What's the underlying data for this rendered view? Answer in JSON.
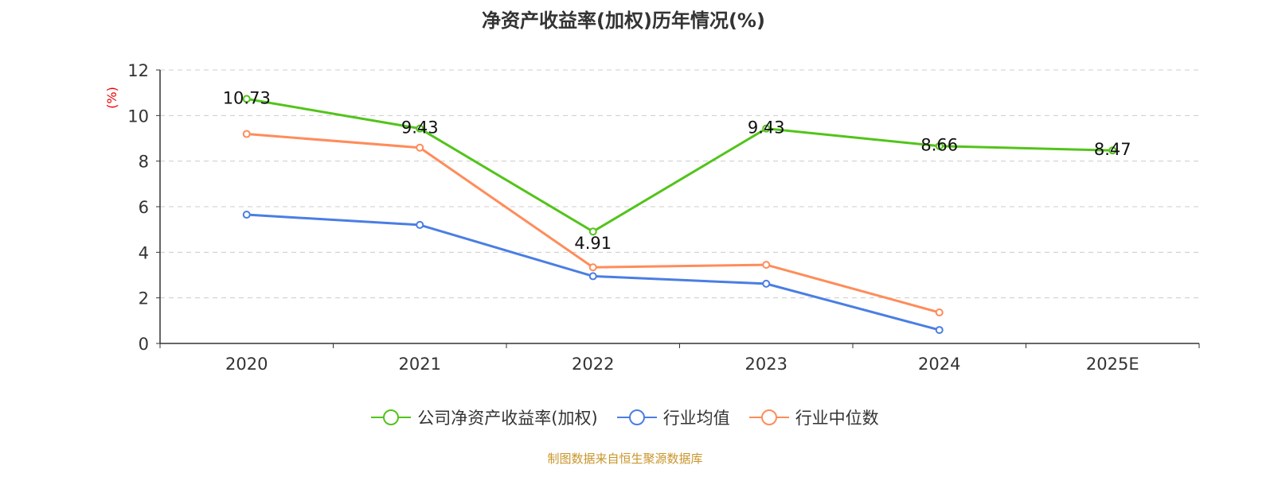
{
  "chart_data": {
    "type": "line",
    "title": "净资产收益率(加权)历年情况(%)",
    "ylabel": "(%)",
    "xlabel": "",
    "categories": [
      "2020",
      "2021",
      "2022",
      "2023",
      "2024",
      "2025E"
    ],
    "ylim": [
      0,
      12
    ],
    "yticks": [
      0,
      2,
      4,
      6,
      8,
      10,
      12
    ],
    "grid": true,
    "legend_position": "bottom",
    "series": [
      {
        "name": "公司净资产收益率(加权)",
        "color": "#52c41a",
        "values": [
          10.73,
          9.43,
          4.91,
          9.43,
          8.66,
          8.47
        ],
        "labels": [
          "10.73",
          "9.43",
          "4.91",
          "9.43",
          "8.66",
          "8.47"
        ]
      },
      {
        "name": "行业均值",
        "color": "#4a7ee3",
        "values": [
          5.65,
          5.2,
          2.95,
          2.62,
          0.59,
          null
        ]
      },
      {
        "name": "行业中位数",
        "color": "#ff8c5a",
        "values": [
          9.19,
          8.59,
          3.34,
          3.45,
          1.36,
          null
        ]
      }
    ]
  },
  "source": "制图数据来自恒生聚源数据库"
}
